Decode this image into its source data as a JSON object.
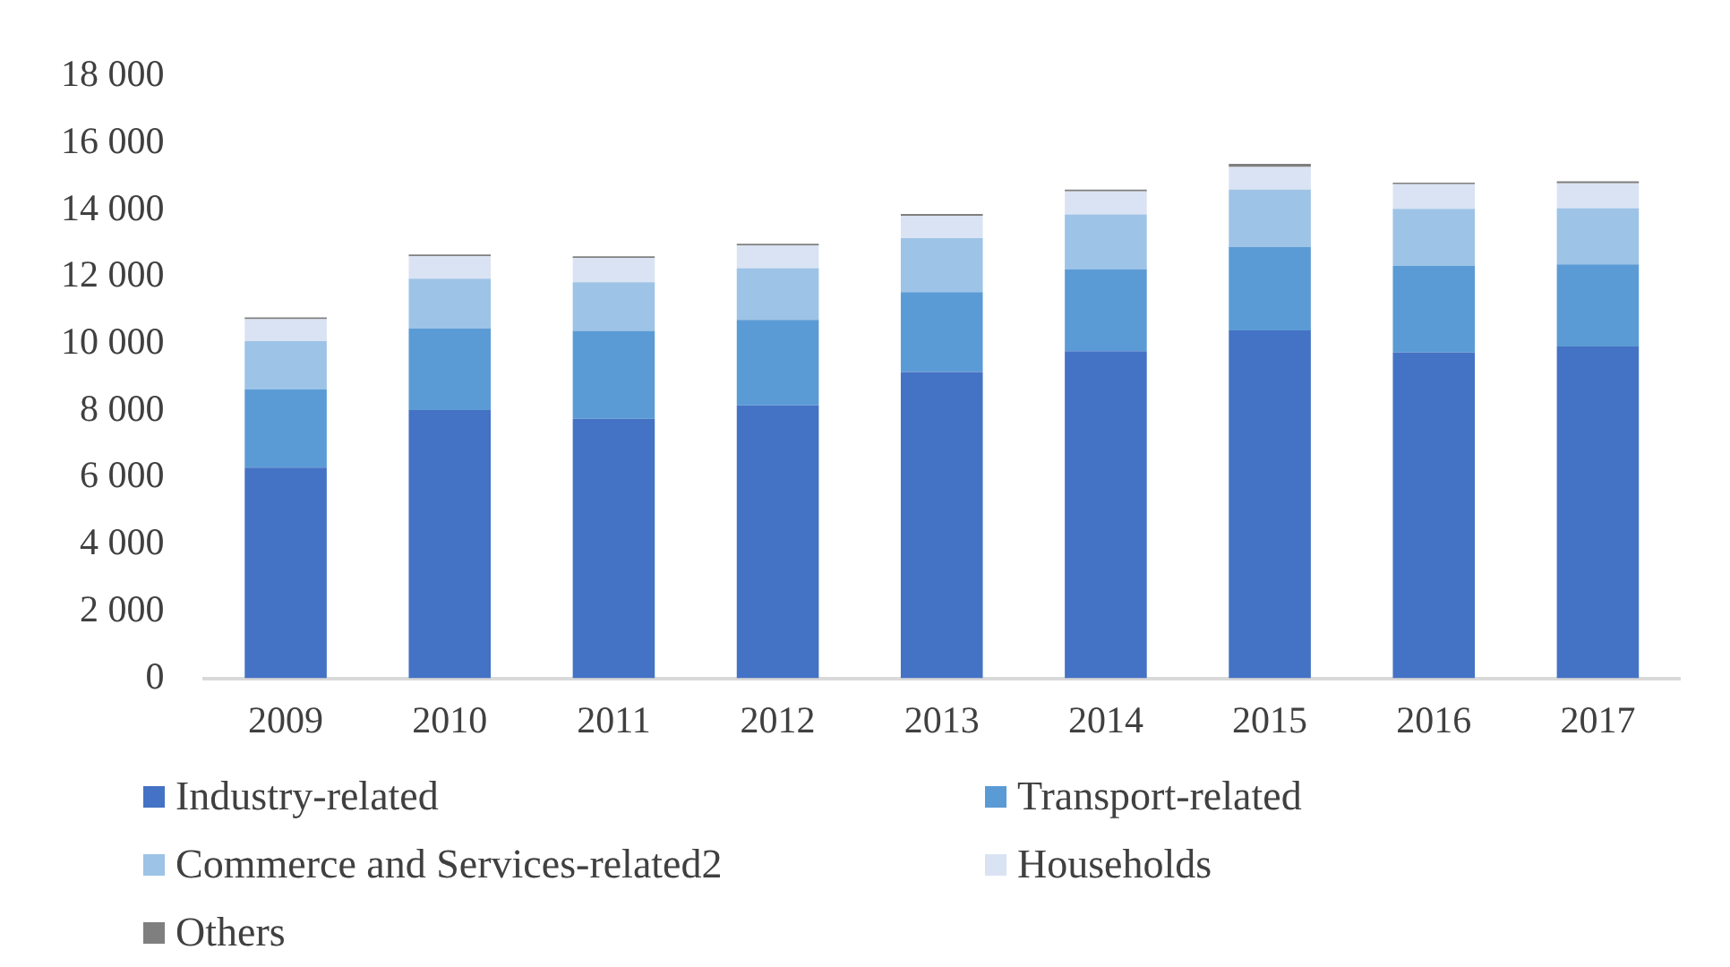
{
  "chart_data": {
    "type": "bar",
    "stacked": true,
    "categories": [
      "2009",
      "2010",
      "2011",
      "2012",
      "2013",
      "2014",
      "2015",
      "2016",
      "2017"
    ],
    "series": [
      {
        "name": "Industry-related",
        "color": "#4472c4",
        "values": [
          6300,
          8020,
          7760,
          8160,
          9160,
          9780,
          10400,
          9750,
          9920
        ]
      },
      {
        "name": "Transport-related",
        "color": "#5b9bd5",
        "values": [
          2340,
          2440,
          2630,
          2560,
          2390,
          2440,
          2500,
          2580,
          2460
        ]
      },
      {
        "name": "Commerce and Services-related2",
        "color": "#9dc3e6",
        "values": [
          1440,
          1490,
          1450,
          1540,
          1610,
          1650,
          1710,
          1710,
          1680
        ]
      },
      {
        "name": "Households",
        "color": "#dae3f3",
        "values": [
          660,
          670,
          730,
          680,
          670,
          690,
          680,
          730,
          740
        ]
      },
      {
        "name": "Others",
        "color": "#7f7f7f",
        "values": [
          50,
          50,
          50,
          50,
          50,
          50,
          90,
          50,
          60
        ]
      }
    ],
    "ylim": [
      0,
      18000
    ],
    "yticks": [
      {
        "value": 0,
        "label": "0"
      },
      {
        "value": 2000,
        "label": "2 000"
      },
      {
        "value": 4000,
        "label": "4 000"
      },
      {
        "value": 6000,
        "label": "6 000"
      },
      {
        "value": 8000,
        "label": "8 000"
      },
      {
        "value": 10000,
        "label": "10 000"
      },
      {
        "value": 12000,
        "label": "12 000"
      },
      {
        "value": 14000,
        "label": "14 000"
      },
      {
        "value": 16000,
        "label": "16 000"
      },
      {
        "value": 18000,
        "label": "18 000"
      }
    ],
    "grid": false,
    "legend": "bottom"
  }
}
